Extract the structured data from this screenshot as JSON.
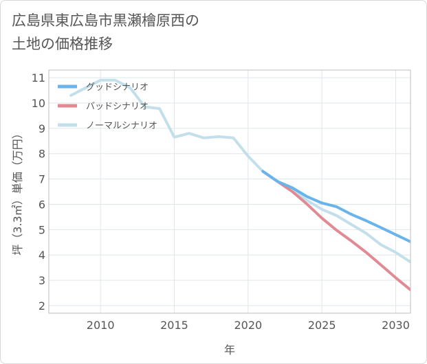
{
  "chart_data": {
    "type": "line",
    "title_lines": [
      "広島県東広島市黒瀬檜原西の",
      "土地の価格推移"
    ],
    "xlabel": "年",
    "ylabel": "坪（3.3㎡）単価（万円）",
    "xlim": [
      2006.5,
      2031
    ],
    "ylim": [
      1.7,
      11.3
    ],
    "xticks": [
      2010,
      2015,
      2020,
      2025,
      2030
    ],
    "yticks": [
      2,
      3,
      4,
      5,
      6,
      7,
      8,
      9,
      10,
      11
    ],
    "grid": true,
    "legend_position": "top-left",
    "series": [
      {
        "name": "グッドシナリオ",
        "color": "#6ab4ec",
        "x": [
          2021,
          2022,
          2023,
          2024,
          2025,
          2026,
          2027,
          2028,
          2029,
          2030,
          2031
        ],
        "y": [
          7.3,
          6.9,
          6.65,
          6.3,
          6.05,
          5.9,
          5.6,
          5.35,
          5.08,
          4.8,
          4.52
        ]
      },
      {
        "name": "バッドシナリオ",
        "color": "#e08a93",
        "x": [
          2021,
          2022,
          2023,
          2024,
          2025,
          2026,
          2027,
          2028,
          2029,
          2030,
          2031
        ],
        "y": [
          7.3,
          6.9,
          6.5,
          6.0,
          5.45,
          4.97,
          4.55,
          4.1,
          3.6,
          3.1,
          2.62
        ]
      },
      {
        "name": "ノーマルシナリオ",
        "color": "#c3dfec",
        "x": [
          2008,
          2009,
          2010,
          2011,
          2012,
          2013,
          2014,
          2015,
          2016,
          2017,
          2018,
          2019,
          2020,
          2021,
          2022,
          2023,
          2024,
          2025,
          2026,
          2027,
          2028,
          2029,
          2030,
          2031
        ],
        "y": [
          10.3,
          10.6,
          10.9,
          10.9,
          10.6,
          9.85,
          9.78,
          8.65,
          8.8,
          8.62,
          8.67,
          8.62,
          7.9,
          7.3,
          6.9,
          6.55,
          6.15,
          5.8,
          5.55,
          5.2,
          4.85,
          4.4,
          4.1,
          3.72
        ]
      }
    ]
  }
}
